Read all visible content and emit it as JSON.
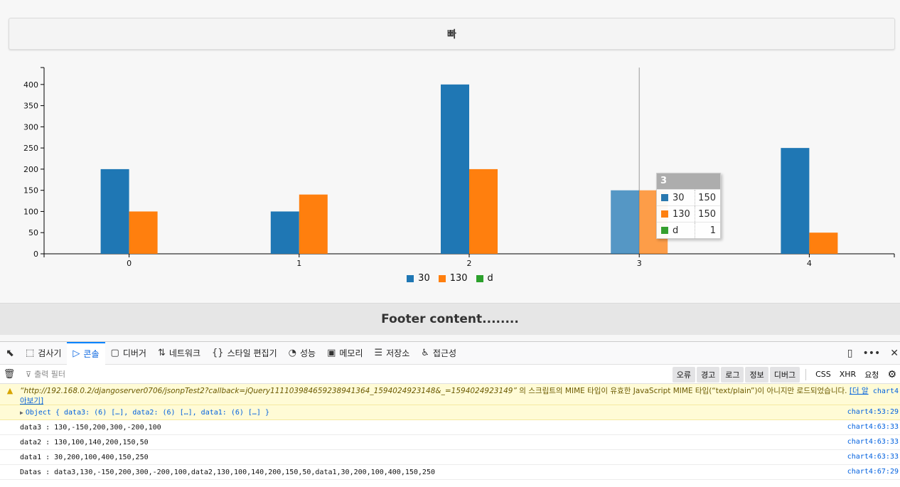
{
  "header": {
    "title": "빠"
  },
  "chart_data": {
    "type": "bar",
    "categories": [
      "0",
      "1",
      "2",
      "3",
      "4"
    ],
    "series": [
      {
        "name": "30",
        "values": [
          200,
          100,
          400,
          150,
          250
        ],
        "color": "#1f77b4"
      },
      {
        "name": "130",
        "values": [
          100,
          140,
          200,
          150,
          50
        ],
        "color": "#ff7f0e"
      },
      {
        "name": "d",
        "values": [
          null,
          null,
          null,
          1,
          null
        ],
        "color": "#2ca02c"
      }
    ],
    "yticks": [
      0,
      50,
      100,
      150,
      200,
      250,
      300,
      350,
      400
    ],
    "ylim": [
      0,
      440
    ],
    "legend_position": "bottom",
    "highlighted_category": "3"
  },
  "tooltip": {
    "title": "3",
    "rows": [
      {
        "name": "30",
        "value": "150",
        "color": "#1f77b4"
      },
      {
        "name": "130",
        "value": "150",
        "color": "#ff7f0e"
      },
      {
        "name": "d",
        "value": "1",
        "color": "#2ca02c"
      }
    ]
  },
  "footer": {
    "text": "Footer content........"
  },
  "devtools": {
    "tabs": [
      {
        "label": "검사기",
        "icon": "inspector-icon",
        "glyph": "⬚"
      },
      {
        "label": "콘솔",
        "icon": "console-icon",
        "glyph": "▷"
      },
      {
        "label": "디버거",
        "icon": "debugger-icon",
        "glyph": "▢"
      },
      {
        "label": "네트워크",
        "icon": "network-icon",
        "glyph": "⇅"
      },
      {
        "label": "스타일 편집기",
        "icon": "style-editor-icon",
        "glyph": "{}"
      },
      {
        "label": "성능",
        "icon": "performance-icon",
        "glyph": "◔"
      },
      {
        "label": "메모리",
        "icon": "memory-icon",
        "glyph": "▣"
      },
      {
        "label": "저장소",
        "icon": "storage-icon",
        "glyph": "☰"
      },
      {
        "label": "접근성",
        "icon": "accessibility-icon",
        "glyph": "♿"
      }
    ],
    "active_tab": "콘솔",
    "filter_placeholder": "출력 필터",
    "filter_buttons": [
      "오류",
      "경고",
      "로그",
      "정보",
      "디버그"
    ],
    "request_buttons": [
      "CSS",
      "XHR",
      "요청"
    ],
    "warning": {
      "url": "“http://192.168.0.2/djangoserver0706/jsonpTest2?callback=jQuery111103984659238941364_1594024923148&_=1594024923149”",
      "message": " 의 스크립트의 MIME 타입이 유효한 JavaScript MIME 타입(“text/plain”)이 아니지만 로드되었습니다. ",
      "link": "[더 알아보기]",
      "location": "chart4"
    },
    "messages": [
      {
        "text": "Object { data3: (6) […], data2: (6) […], data1: (6) […] }",
        "location": "chart4:53:29",
        "kind": "obj"
      },
      {
        "text": "data3 : 130,-150,200,300,-200,100",
        "location": "chart4:63:33",
        "kind": "log"
      },
      {
        "text": "data2 : 130,100,140,200,150,50",
        "location": "chart4:63:33",
        "kind": "log"
      },
      {
        "text": "data1 : 30,200,100,400,150,250",
        "location": "chart4:63:33",
        "kind": "log"
      },
      {
        "text": "Datas : data3,130,-150,200,300,-200,100,data2,130,100,140,200,150,50,data1,30,200,100,400,150,250",
        "location": "chart4:67:29",
        "kind": "log"
      }
    ]
  }
}
